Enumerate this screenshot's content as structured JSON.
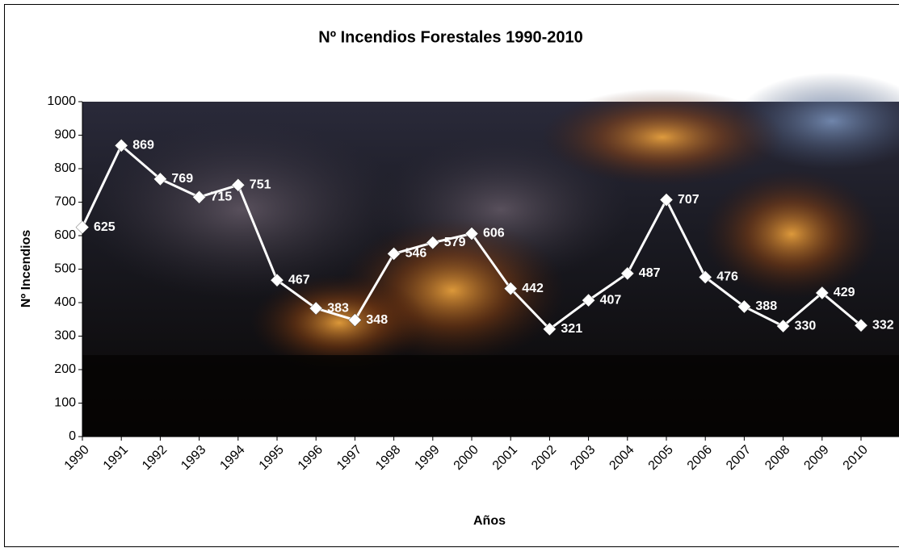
{
  "chart_data": {
    "type": "line",
    "title": "Nº Incendios Forestales 1990-2010",
    "x_label": "Años",
    "y_label": "Nº Incendios",
    "categories": [
      "1990",
      "1991",
      "1992",
      "1993",
      "1994",
      "1995",
      "1996",
      "1997",
      "1998",
      "1999",
      "2000",
      "2001",
      "2002",
      "2003",
      "2004",
      "2005",
      "2006",
      "2007",
      "2008",
      "2009",
      "2010"
    ],
    "series": [
      {
        "name": "Nº Incendios",
        "color": "#ffffff",
        "values": [
          625,
          869,
          769,
          715,
          751,
          467,
          383,
          348,
          546,
          579,
          606,
          442,
          321,
          407,
          487,
          707,
          476,
          388,
          330,
          429,
          332
        ]
      }
    ],
    "ylim": [
      0,
      1000
    ],
    "yticks": [
      0,
      100,
      200,
      300,
      400,
      500,
      600,
      700,
      800,
      900,
      1000
    ]
  }
}
